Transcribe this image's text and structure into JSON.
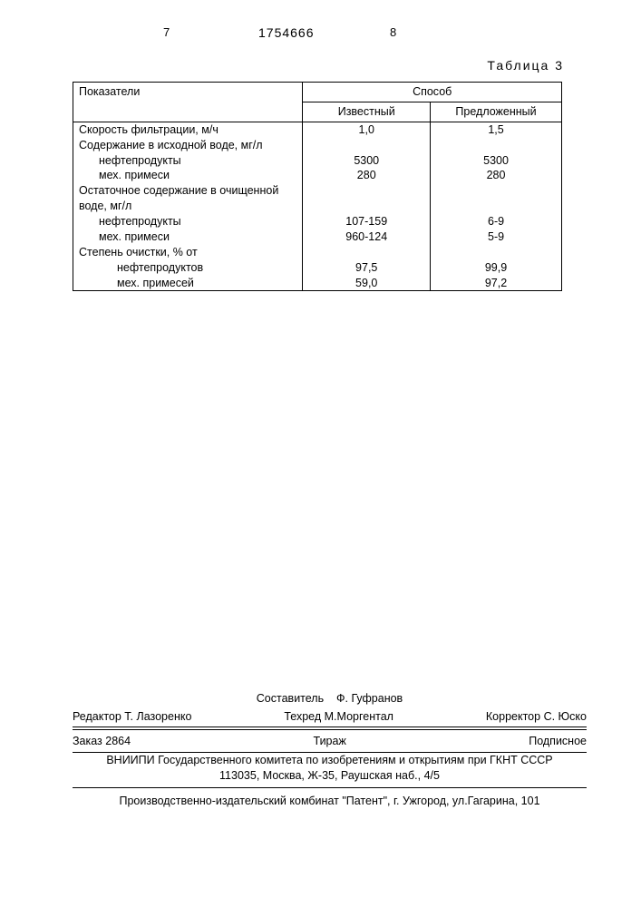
{
  "header": {
    "page_left": "7",
    "doc_number": "1754666",
    "page_right": "8"
  },
  "table": {
    "caption": "Таблица 3",
    "columns": {
      "indicators": "Показатели",
      "method": "Способ",
      "known": "Известный",
      "proposed": "Предложенный"
    },
    "rows": [
      {
        "label": "Скорость фильтрации, м/ч",
        "indent": 0,
        "known": "1,0",
        "proposed": "1,5"
      },
      {
        "label": "Содержание в исходной воде, мг/л",
        "indent": 0,
        "known": "",
        "proposed": ""
      },
      {
        "label": "нефтепродукты",
        "indent": 1,
        "known": "5300",
        "proposed": "5300"
      },
      {
        "label": "мех. примеси",
        "indent": 1,
        "known": "280",
        "proposed": "280"
      },
      {
        "label": "Остаточное содержание в очищенной воде, мг/л",
        "indent": 0,
        "known": "",
        "proposed": ""
      },
      {
        "label": "нефтепродукты",
        "indent": 1,
        "known": "107-159",
        "proposed": "6-9"
      },
      {
        "label": "мех. примеси",
        "indent": 1,
        "known": "960-124",
        "proposed": "5-9"
      },
      {
        "label": "Степень очистки, % от",
        "indent": 0,
        "known": "",
        "proposed": ""
      },
      {
        "label": "нефтепродуктов",
        "indent": 2,
        "known": "97,5",
        "proposed": "99,9"
      },
      {
        "label": "мех. примесей",
        "indent": 2,
        "known": "59,0",
        "proposed": "97,2"
      }
    ]
  },
  "credits": {
    "compiler_label": "Составитель",
    "compiler_name": "Ф. Гуфранов",
    "editor_label": "Редактор",
    "editor_name": "Т. Лазоренко",
    "techred_label": "Техред",
    "techred_name": "М.Моргентал",
    "corrector_label": "Корректор",
    "corrector_name": "С. Юско",
    "order_label": "Заказ",
    "order_number": "2864",
    "tirazh": "Тираж",
    "podpisnoe": "Подписное",
    "org_line1": "ВНИИПИ Государственного комитета по изобретениям и открытиям при ГКНТ СССР",
    "org_line2": "113035, Москва, Ж-35, Раушская наб., 4/5",
    "printer": "Производственно-издательский комбинат \"Патент\", г. Ужгород, ул.Гагарина, 101"
  }
}
